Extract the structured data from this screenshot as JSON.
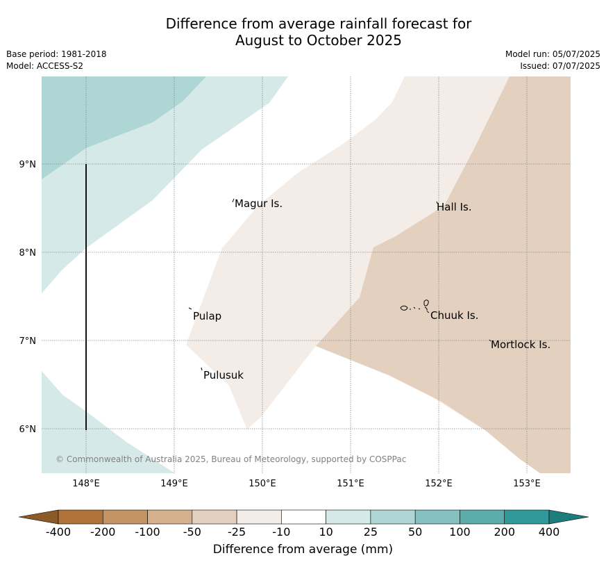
{
  "title": {
    "line1": "Difference from average rainfall forecast for",
    "line2": "August to October 2025"
  },
  "meta": {
    "base_period": "Base period: 1981-2018",
    "model": "Model: ACCESS-S2",
    "model_run": "Model run: 05/07/2025",
    "issued": "Issued: 07/07/2025"
  },
  "map": {
    "lon_ticks": [
      "148°E",
      "149°E",
      "150°E",
      "151°E",
      "152°E",
      "153°E"
    ],
    "lat_ticks": [
      "9°N",
      "8°N",
      "7°N",
      "6°N"
    ],
    "places": [
      {
        "name": "Magur Is.",
        "lon": 149.7,
        "lat": 8.55
      },
      {
        "name": "Hall Is.",
        "lon": 152.0,
        "lat": 8.5
      },
      {
        "name": "Pulap",
        "lon": 149.2,
        "lat": 7.3
      },
      {
        "name": "Chuuk Is.",
        "lon": 151.9,
        "lat": 7.3
      },
      {
        "name": "Mortlock Is.",
        "lon": 152.6,
        "lat": 6.95
      },
      {
        "name": "Pulusuk",
        "lon": 149.3,
        "lat": 6.65
      }
    ],
    "copyright": "© Commonwealth of Australia 2025, Bureau of Meteorology, supported by COSPPac"
  },
  "colorbar": {
    "ticks": [
      "-400",
      "-200",
      "-100",
      "-50",
      "-25",
      "-10",
      "10",
      "25",
      "50",
      "100",
      "200",
      "400"
    ],
    "colors": [
      "#b07339",
      "#c49465",
      "#d4b08c",
      "#e3d0bf",
      "#f4ece7",
      "#ffffff",
      "#d5eae8",
      "#aed6d4",
      "#85c1bf",
      "#5bacaa",
      "#31999a"
    ],
    "extend_low": "#8c5a26",
    "extend_high": "#1e7c7a",
    "label": "Difference from average (mm)"
  }
}
